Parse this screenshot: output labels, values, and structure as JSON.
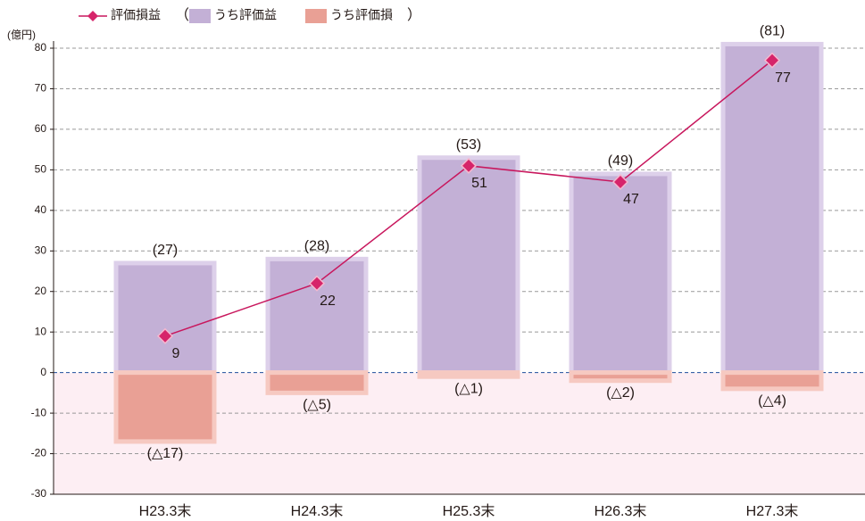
{
  "chart_data": {
    "type": "bar_line",
    "y_unit": "(億円)",
    "legend_brackets": [
      "（",
      "）"
    ],
    "categories": [
      "H23.3末",
      "H24.3末",
      "H25.3末",
      "H26.3末",
      "H27.3末"
    ],
    "series": [
      {
        "name": "評価損益",
        "type": "line",
        "color": "#c8175d",
        "values": [
          9,
          22,
          51,
          47,
          77
        ]
      },
      {
        "name": "うち評価益",
        "type": "bar",
        "color": "#c3b0d6",
        "values": [
          27,
          28,
          53,
          49,
          81
        ],
        "value_labels": [
          "(27)",
          "(28)",
          "(53)",
          "(49)",
          "(81)"
        ]
      },
      {
        "name": "うち評価損",
        "type": "bar",
        "color": "#e9a095",
        "values": [
          -17,
          -5,
          -1,
          -2,
          -4
        ],
        "value_labels": [
          "(△17)",
          "(△5)",
          "(△1)",
          "(△2)",
          "(△4)"
        ]
      }
    ],
    "ylim": [
      -30,
      80
    ],
    "yticks": [
      -30,
      -20,
      -10,
      0,
      10,
      20,
      30,
      40,
      50,
      60,
      70,
      80
    ],
    "grid": true
  }
}
